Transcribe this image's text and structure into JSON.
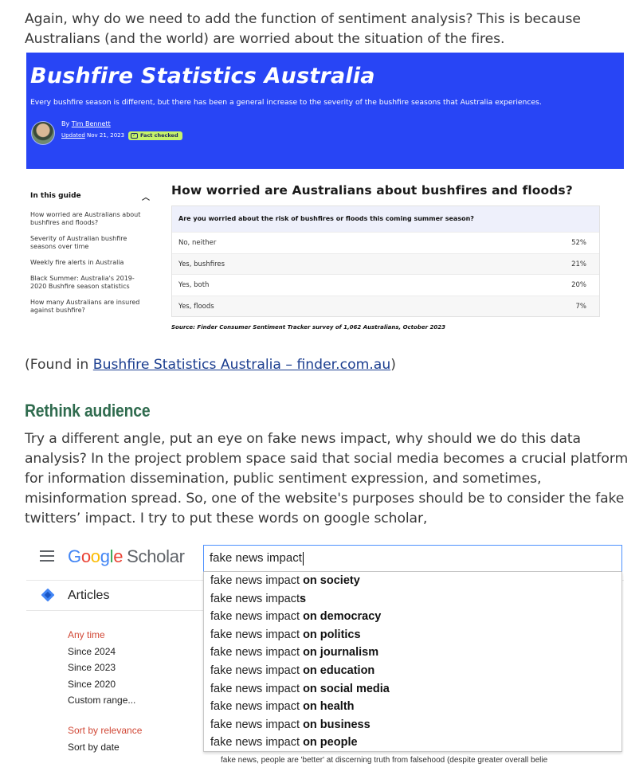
{
  "intro_text": "Again, why do we need to add the function of sentiment analysis? This is because Australians (and the world) are worried about the situation of the fires.",
  "finder": {
    "banner_title": "Bushfire Statistics Australia",
    "banner_subtitle": "Every bushfire season is different, but there has been a general increase to the severity of the bushfire seasons that Australia experiences.",
    "by_prefix": "By",
    "author": "Tim Bennett",
    "updated_label": "Updated",
    "updated_date": "Nov 21, 2023",
    "fact_checked": "Fact checked",
    "guide": {
      "heading": "In this guide",
      "items": [
        "How worried are Australians about bushfires and floods?",
        "Severity of Australian bushfire seasons over time",
        "Weekly fire alerts in Australia",
        "Black Summer: Australia's 2019-2020 Bushfire season statistics",
        "How many Australians are insured against bushfire?"
      ]
    },
    "question_title": "How worried are Australians about bushfires and floods?",
    "table_header": "Are you worried about the risk of bushfires or floods this coming summer season?",
    "rows": [
      {
        "label": "No, neither",
        "value": "52%"
      },
      {
        "label": "Yes, bushfires",
        "value": "21%"
      },
      {
        "label": "Yes, both",
        "value": "20%"
      },
      {
        "label": "Yes, floods",
        "value": "7%"
      }
    ],
    "source": "Source: Finder Consumer Sentiment Tracker survey of 1,062 Australians, October 2023"
  },
  "found": {
    "prefix": "(Found in ",
    "link_text": "Bushfire Statistics Australia – finder.com.au",
    "suffix": ")"
  },
  "section_heading": "Rethink audience",
  "body_text": "Try a different angle, put an eye on fake news impact, why should we do this data analysis? In the project problem space said that social media becomes a crucial platform for information dissemination, public sentiment expression, and sometimes, misinformation spread. So, one of the website's purposes should be to consider the fake twitters’ impact. I try to put these words on google scholar,",
  "scholar": {
    "logo_scholar": "Scholar",
    "search_value": "fake news impact",
    "articles_label": "Articles",
    "time_filters": [
      "Any time",
      "Since 2024",
      "Since 2023",
      "Since 2020",
      "Custom range..."
    ],
    "sort_filters": [
      "Sort by relevance",
      "Sort by date"
    ],
    "suggestion_prefix": "fake news impact",
    "suggestions": [
      {
        "bold": "on society",
        "sep": " "
      },
      {
        "bold": "s",
        "sep": ""
      },
      {
        "bold": "on democracy",
        "sep": " "
      },
      {
        "bold": "on politics",
        "sep": " "
      },
      {
        "bold": "on journalism",
        "sep": " "
      },
      {
        "bold": "on education",
        "sep": " "
      },
      {
        "bold": "on social media",
        "sep": " "
      },
      {
        "bold": "on health",
        "sep": " "
      },
      {
        "bold": "on business",
        "sep": " "
      },
      {
        "bold": "on people",
        "sep": " "
      }
    ],
    "result_peek": "fake news, people are 'better' at discerning truth from falsehood (despite greater overall belie"
  },
  "colors": {
    "banner_blue": "#2845f5",
    "fact_green": "#c6f36a",
    "heading_green": "#2f6b4e",
    "link_blue": "#1a3d8f"
  }
}
